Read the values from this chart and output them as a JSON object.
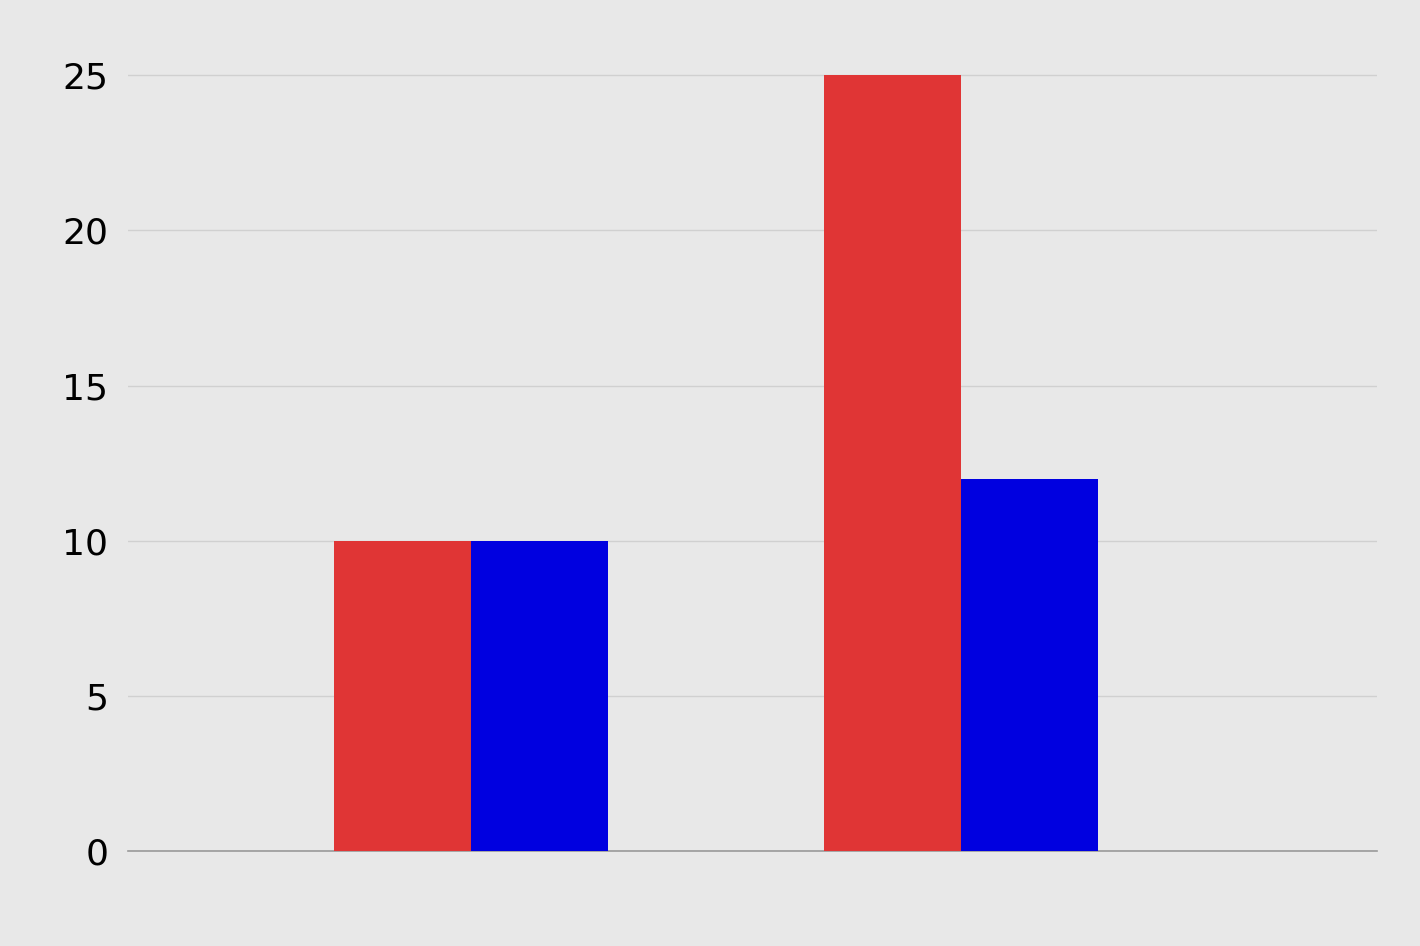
{
  "red_values": [
    10,
    25
  ],
  "blue_values": [
    10,
    12
  ],
  "red_color": "#e03535",
  "blue_color": "#0000e0",
  "background_color": "#e8e8e8",
  "ylim": [
    0,
    26.5
  ],
  "yticks": [
    0,
    5,
    10,
    15,
    20,
    25
  ],
  "bar_width": 0.28,
  "grid_color": "#d0d0d0",
  "grid_linewidth": 1.0,
  "tick_fontsize": 26,
  "xlim": [
    0.3,
    2.85
  ]
}
